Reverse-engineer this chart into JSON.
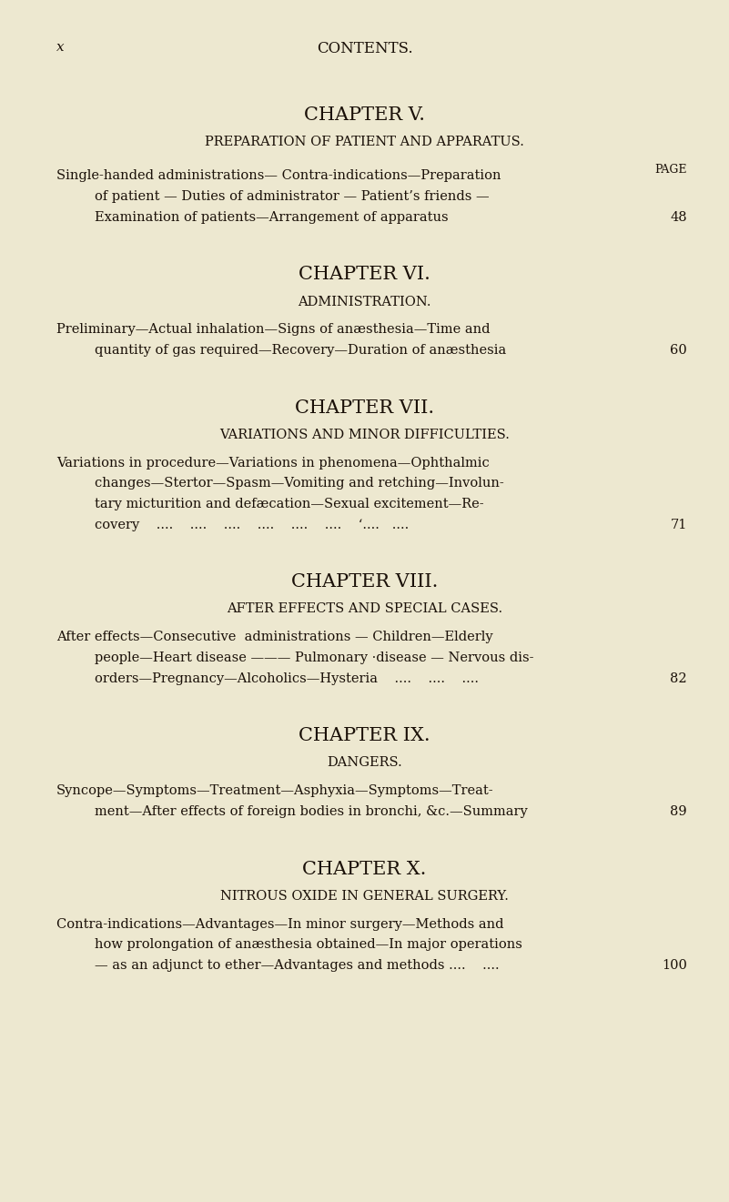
{
  "bg_color": "#ede8d0",
  "text_color": "#1a1008",
  "page_width": 8.01,
  "page_height": 13.21,
  "dpi": 100,
  "header_left": "x",
  "header_center": "CONTENTS.",
  "sections": [
    {
      "chapter_title": "CHAPTER V.",
      "subtitle": "PREPARATION OF PATIENT AND APPARATUS.",
      "subtitle_mixed": true,
      "has_page_label": true,
      "body_lines": [
        {
          "text": "Single-handed administrations— Contra-indications—Preparation",
          "indent": false
        },
        {
          "text": "of patient — Duties of administrator — Patient’s friends —",
          "indent": true
        },
        {
          "text": "Examination of patients—Arrangement of apparatus",
          "indent": true,
          "dots": "...",
          "page_num": "48"
        }
      ]
    },
    {
      "chapter_title": "CHAPTER VI.",
      "subtitle": "ADMINISTRATION.",
      "subtitle_mixed": true,
      "has_page_label": false,
      "body_lines": [
        {
          "text": "Preliminary—Actual inhalation—Signs of anæsthesia—Time and",
          "indent": false
        },
        {
          "text": "quantity of gas required—Recovery—Duration of anæsthesia",
          "indent": true,
          "page_num": "60"
        }
      ]
    },
    {
      "chapter_title": "CHAPTER VII.",
      "subtitle": "VARIATIONS AND MINOR DIFFICULTIES.",
      "subtitle_mixed": true,
      "has_page_label": false,
      "body_lines": [
        {
          "text": "Variations in procedure—Variations in phenomena—Ophthalmic",
          "indent": false
        },
        {
          "text": "changes—Stertor—Spasm—Vomiting and retching—Involun-",
          "indent": true
        },
        {
          "text": "tary micturition and defæcation—Sexual excitement—Re-",
          "indent": true
        },
        {
          "text": "covery    ....    ....    ....    ....    ....    ....    ‘....   ....",
          "indent": true,
          "page_num": "71"
        }
      ]
    },
    {
      "chapter_title": "CHAPTER VIII.",
      "subtitle": "AFTER EFFECTS AND SPECIAL CASES.",
      "subtitle_mixed": true,
      "has_page_label": false,
      "body_lines": [
        {
          "text": "After effects—Consecutive  administrations — Children—Elderly",
          "indent": false
        },
        {
          "text": "people—Heart disease ——— Pulmonary ·disease — Nervous dis-",
          "indent": true
        },
        {
          "text": "orders—Pregnancy—Alcoholics—Hysteria    ....    ....    ....",
          "indent": true,
          "page_num": "82"
        }
      ]
    },
    {
      "chapter_title": "CHAPTER IX.",
      "subtitle": "DANGERS.",
      "subtitle_mixed": true,
      "has_page_label": false,
      "body_lines": [
        {
          "text": "Syncope—Symptoms—Treatment—Asphyxia—Symptoms—Treat-",
          "indent": false
        },
        {
          "text": "ment—After effects of foreign bodies in bronchi, &c.—Summary",
          "indent": true,
          "page_num": "89"
        }
      ]
    },
    {
      "chapter_title": "CHAPTER X.",
      "subtitle": "NITROUS OXIDE IN GENERAL SURGERY.",
      "subtitle_mixed": true,
      "has_page_label": false,
      "body_lines": [
        {
          "text": "Contra-indications—Advantages—In minor surgery—Methods and",
          "indent": false
        },
        {
          "text": "how prolongation of anæsthesia obtained—In major operations",
          "indent": true
        },
        {
          "text": "— as an adjunct to ether—Advantages and methods ....    ....",
          "indent": true,
          "page_num": "100"
        }
      ]
    }
  ]
}
